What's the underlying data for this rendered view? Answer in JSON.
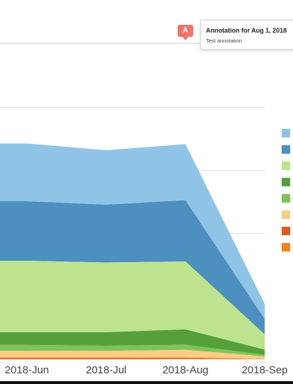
{
  "chart_data": {
    "type": "area",
    "stacked": true,
    "x_categories": [
      "2018-Jun",
      "2018-Jul",
      "2018-Aug",
      "2018-Sep"
    ],
    "series": [
      {
        "color": "#f58220",
        "values": [
          0.4,
          0.4,
          0.5,
          0.05
        ]
      },
      {
        "color": "#e05a1f",
        "values": [
          0.5,
          0.5,
          0.5,
          0.05
        ]
      },
      {
        "color": "#f9cd82",
        "values": [
          4,
          4,
          4.5,
          1.5
        ]
      },
      {
        "color": "#7dc45a",
        "values": [
          3.5,
          3,
          3,
          1
        ]
      },
      {
        "color": "#55a03a",
        "values": [
          7.5,
          8,
          9,
          3
        ]
      },
      {
        "color": "#bde38f",
        "values": [
          42,
          41,
          40,
          9
        ]
      },
      {
        "color": "#4d8fbf",
        "values": [
          35,
          34,
          36,
          9
        ]
      },
      {
        "color": "#8fc4e6",
        "values": [
          34,
          32,
          33,
          9
        ]
      }
    ],
    "ylim": [
      0,
      150
    ],
    "grid": true,
    "legend_placement": "right"
  },
  "annotation": {
    "marker": "A",
    "title": "Annotation for Aug 1, 2018",
    "text": "Test annotation"
  },
  "colors": {
    "flag": "#f0736c",
    "grid": "#dddddd"
  }
}
